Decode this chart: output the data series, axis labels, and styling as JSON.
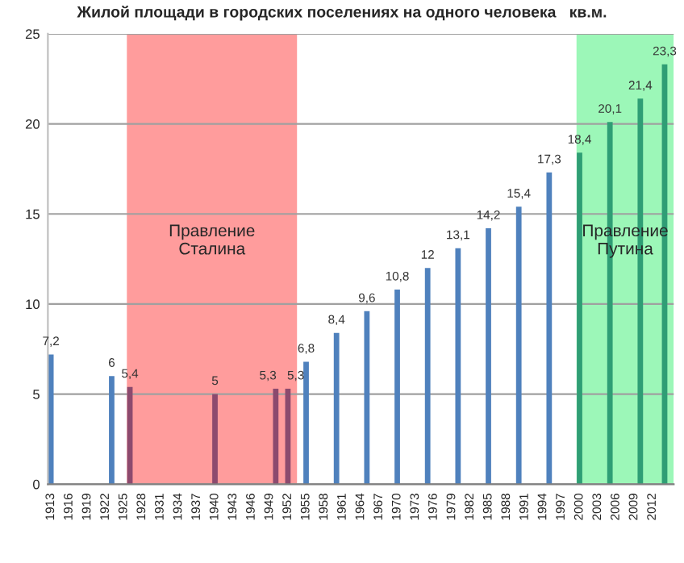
{
  "chart_data": {
    "type": "bar",
    "title": "Жилой площади в городских поселениях на одного человека   кв.м.",
    "x": [
      1913,
      1923,
      1926,
      1940,
      1950,
      1952,
      1955,
      1960,
      1965,
      1970,
      1975,
      1980,
      1985,
      1990,
      1995,
      2000,
      2005,
      2010,
      2014
    ],
    "values": [
      7.2,
      6,
      5.4,
      5,
      5.3,
      5.3,
      6.8,
      8.4,
      9.6,
      10.8,
      12,
      13.1,
      14.2,
      15.4,
      17.3,
      18.4,
      20.1,
      21.4,
      23.3
    ],
    "value_labels": [
      "7,2",
      "6",
      "5,4",
      "5",
      "5,3",
      "5,3",
      "6,8",
      "8,4",
      "9,6",
      "10,8",
      "12",
      "13,1",
      "14,2",
      "15,4",
      "17,3",
      "18,4",
      "20,1",
      "21,4",
      "23,3"
    ],
    "colors": [
      "#4f81bd",
      "#4f81bd",
      "#8c4a6e",
      "#8c4a6e",
      "#8c4a6e",
      "#8c4a6e",
      "#4f81bd",
      "#4f81bd",
      "#4f81bd",
      "#4f81bd",
      "#4f81bd",
      "#4f81bd",
      "#4f81bd",
      "#4f81bd",
      "#4f81bd",
      "#2f9e75",
      "#2f9e75",
      "#2f9e75",
      "#2f9e75"
    ],
    "bands": [
      {
        "axis": "x",
        "from": 1925.5,
        "to": 1953.5,
        "label": "Правление\nСталина",
        "color": "#ff9c9c"
      },
      {
        "axis": "x",
        "from": 1999.5,
        "to": 2015.5,
        "label": "Правление\nПутина",
        "color": "#9cf7b8"
      }
    ],
    "xlim": [
      1912.5,
      2015.5
    ],
    "xticks": [
      1913,
      1916,
      1919,
      1922,
      1925,
      1928,
      1931,
      1934,
      1937,
      1940,
      1943,
      1946,
      1949,
      1952,
      1955,
      1958,
      1961,
      1964,
      1967,
      1970,
      1973,
      1976,
      1979,
      1982,
      1985,
      1988,
      1991,
      1994,
      1997,
      2000,
      2003,
      2006,
      2009,
      2012
    ],
    "ylim": [
      0,
      25
    ],
    "yticks": [
      0,
      5,
      10,
      15,
      20,
      25
    ],
    "grid": "y"
  }
}
